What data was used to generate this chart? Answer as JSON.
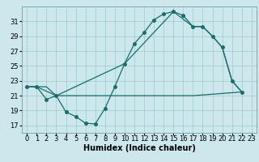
{
  "title": "",
  "xlabel": "Humidex (Indice chaleur)",
  "bg_color": "#cce8ec",
  "grid_color": "#a0c8cc",
  "line_color": "#1a6b6b",
  "xlim": [
    -0.5,
    23.5
  ],
  "ylim": [
    16.0,
    33.0
  ],
  "yticks": [
    17,
    19,
    21,
    23,
    25,
    27,
    29,
    31
  ],
  "xticks": [
    0,
    1,
    2,
    3,
    4,
    5,
    6,
    7,
    8,
    9,
    10,
    11,
    12,
    13,
    14,
    15,
    16,
    17,
    18,
    19,
    20,
    21,
    22,
    23
  ],
  "curve1_x": [
    0,
    1,
    2,
    3,
    4,
    5,
    6,
    7,
    8,
    9,
    10,
    11,
    12,
    13,
    14,
    15,
    16,
    17,
    18,
    19,
    20,
    21,
    22
  ],
  "curve1_y": [
    22.2,
    22.2,
    20.5,
    21.0,
    18.8,
    18.2,
    17.3,
    17.2,
    19.3,
    22.2,
    25.3,
    28.0,
    29.5,
    31.2,
    32.0,
    32.3,
    31.8,
    30.3,
    30.3,
    29.0,
    27.5,
    23.0,
    21.5
  ],
  "curve2_x": [
    0,
    1,
    2,
    3,
    10,
    17,
    22
  ],
  "curve2_y": [
    22.2,
    22.2,
    22.2,
    21.0,
    21.0,
    21.0,
    21.5
  ],
  "curve3_x": [
    0,
    1,
    3,
    10,
    15,
    17,
    18,
    19,
    20,
    21,
    22
  ],
  "curve3_y": [
    22.2,
    22.2,
    21.0,
    25.3,
    32.3,
    30.3,
    30.3,
    29.0,
    27.5,
    23.0,
    21.5
  ],
  "font_size_label": 7.0,
  "font_size_tick": 6.0
}
